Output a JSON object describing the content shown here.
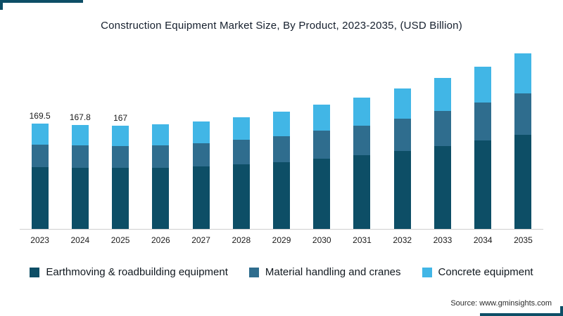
{
  "source": "Source: www.gminsights.com",
  "colors": {
    "earthmoving": "#0d4e66",
    "material_handling": "#2f6d8e",
    "concrete": "#41b6e6",
    "accent_border": "#0d4e66",
    "axis_line": "#cfcfcf",
    "text_dark": "#151f2d"
  },
  "chart_data": {
    "type": "bar",
    "stacked": true,
    "title": "Construction Equipment Market Size, By Product, 2023-2035, (USD Billion)",
    "xlabel": "",
    "ylabel": "",
    "ylim": [
      0,
      300
    ],
    "grid": false,
    "legend_position": "bottom",
    "categories": [
      "2023",
      "2024",
      "2025",
      "2026",
      "2027",
      "2028",
      "2029",
      "2030",
      "2031",
      "2032",
      "2033",
      "2034",
      "2035"
    ],
    "series": [
      {
        "name": "Earthmoving & roadbuilding equipment",
        "color": "#0d4e66",
        "values": [
          100.0,
          99.0,
          98.3,
          98.5,
          100.5,
          104.0,
          108.0,
          113.0,
          119.0,
          126.0,
          134.0,
          143.0,
          152.0
        ]
      },
      {
        "name": "Material handling and cranes",
        "color": "#2f6d8e",
        "values": [
          36.5,
          36.0,
          35.9,
          36.5,
          37.8,
          39.5,
          42.0,
          45.0,
          48.0,
          52.0,
          56.0,
          61.0,
          67.0
        ]
      },
      {
        "name": "Concrete equipment",
        "color": "#41b6e6",
        "values": [
          33.0,
          32.8,
          32.8,
          33.5,
          34.7,
          36.5,
          39.0,
          42.0,
          45.0,
          49.0,
          53.0,
          58.0,
          64.0
        ]
      }
    ],
    "totals": [
      169.5,
      167.8,
      167,
      168.5,
      173,
      180,
      189,
      200,
      212,
      227,
      243,
      262,
      283
    ],
    "bar_labels": [
      "169.5",
      "167.8",
      "167",
      "",
      "",
      "",
      "",
      "",
      "",
      "",
      "",
      "",
      ""
    ]
  },
  "legend": {
    "items": [
      {
        "label": "Earthmoving & roadbuilding equipment",
        "color": "#0d4e66"
      },
      {
        "label": "Material handling and cranes",
        "color": "#2f6d8e"
      },
      {
        "label": "Concrete equipment",
        "color": "#41b6e6"
      }
    ]
  }
}
